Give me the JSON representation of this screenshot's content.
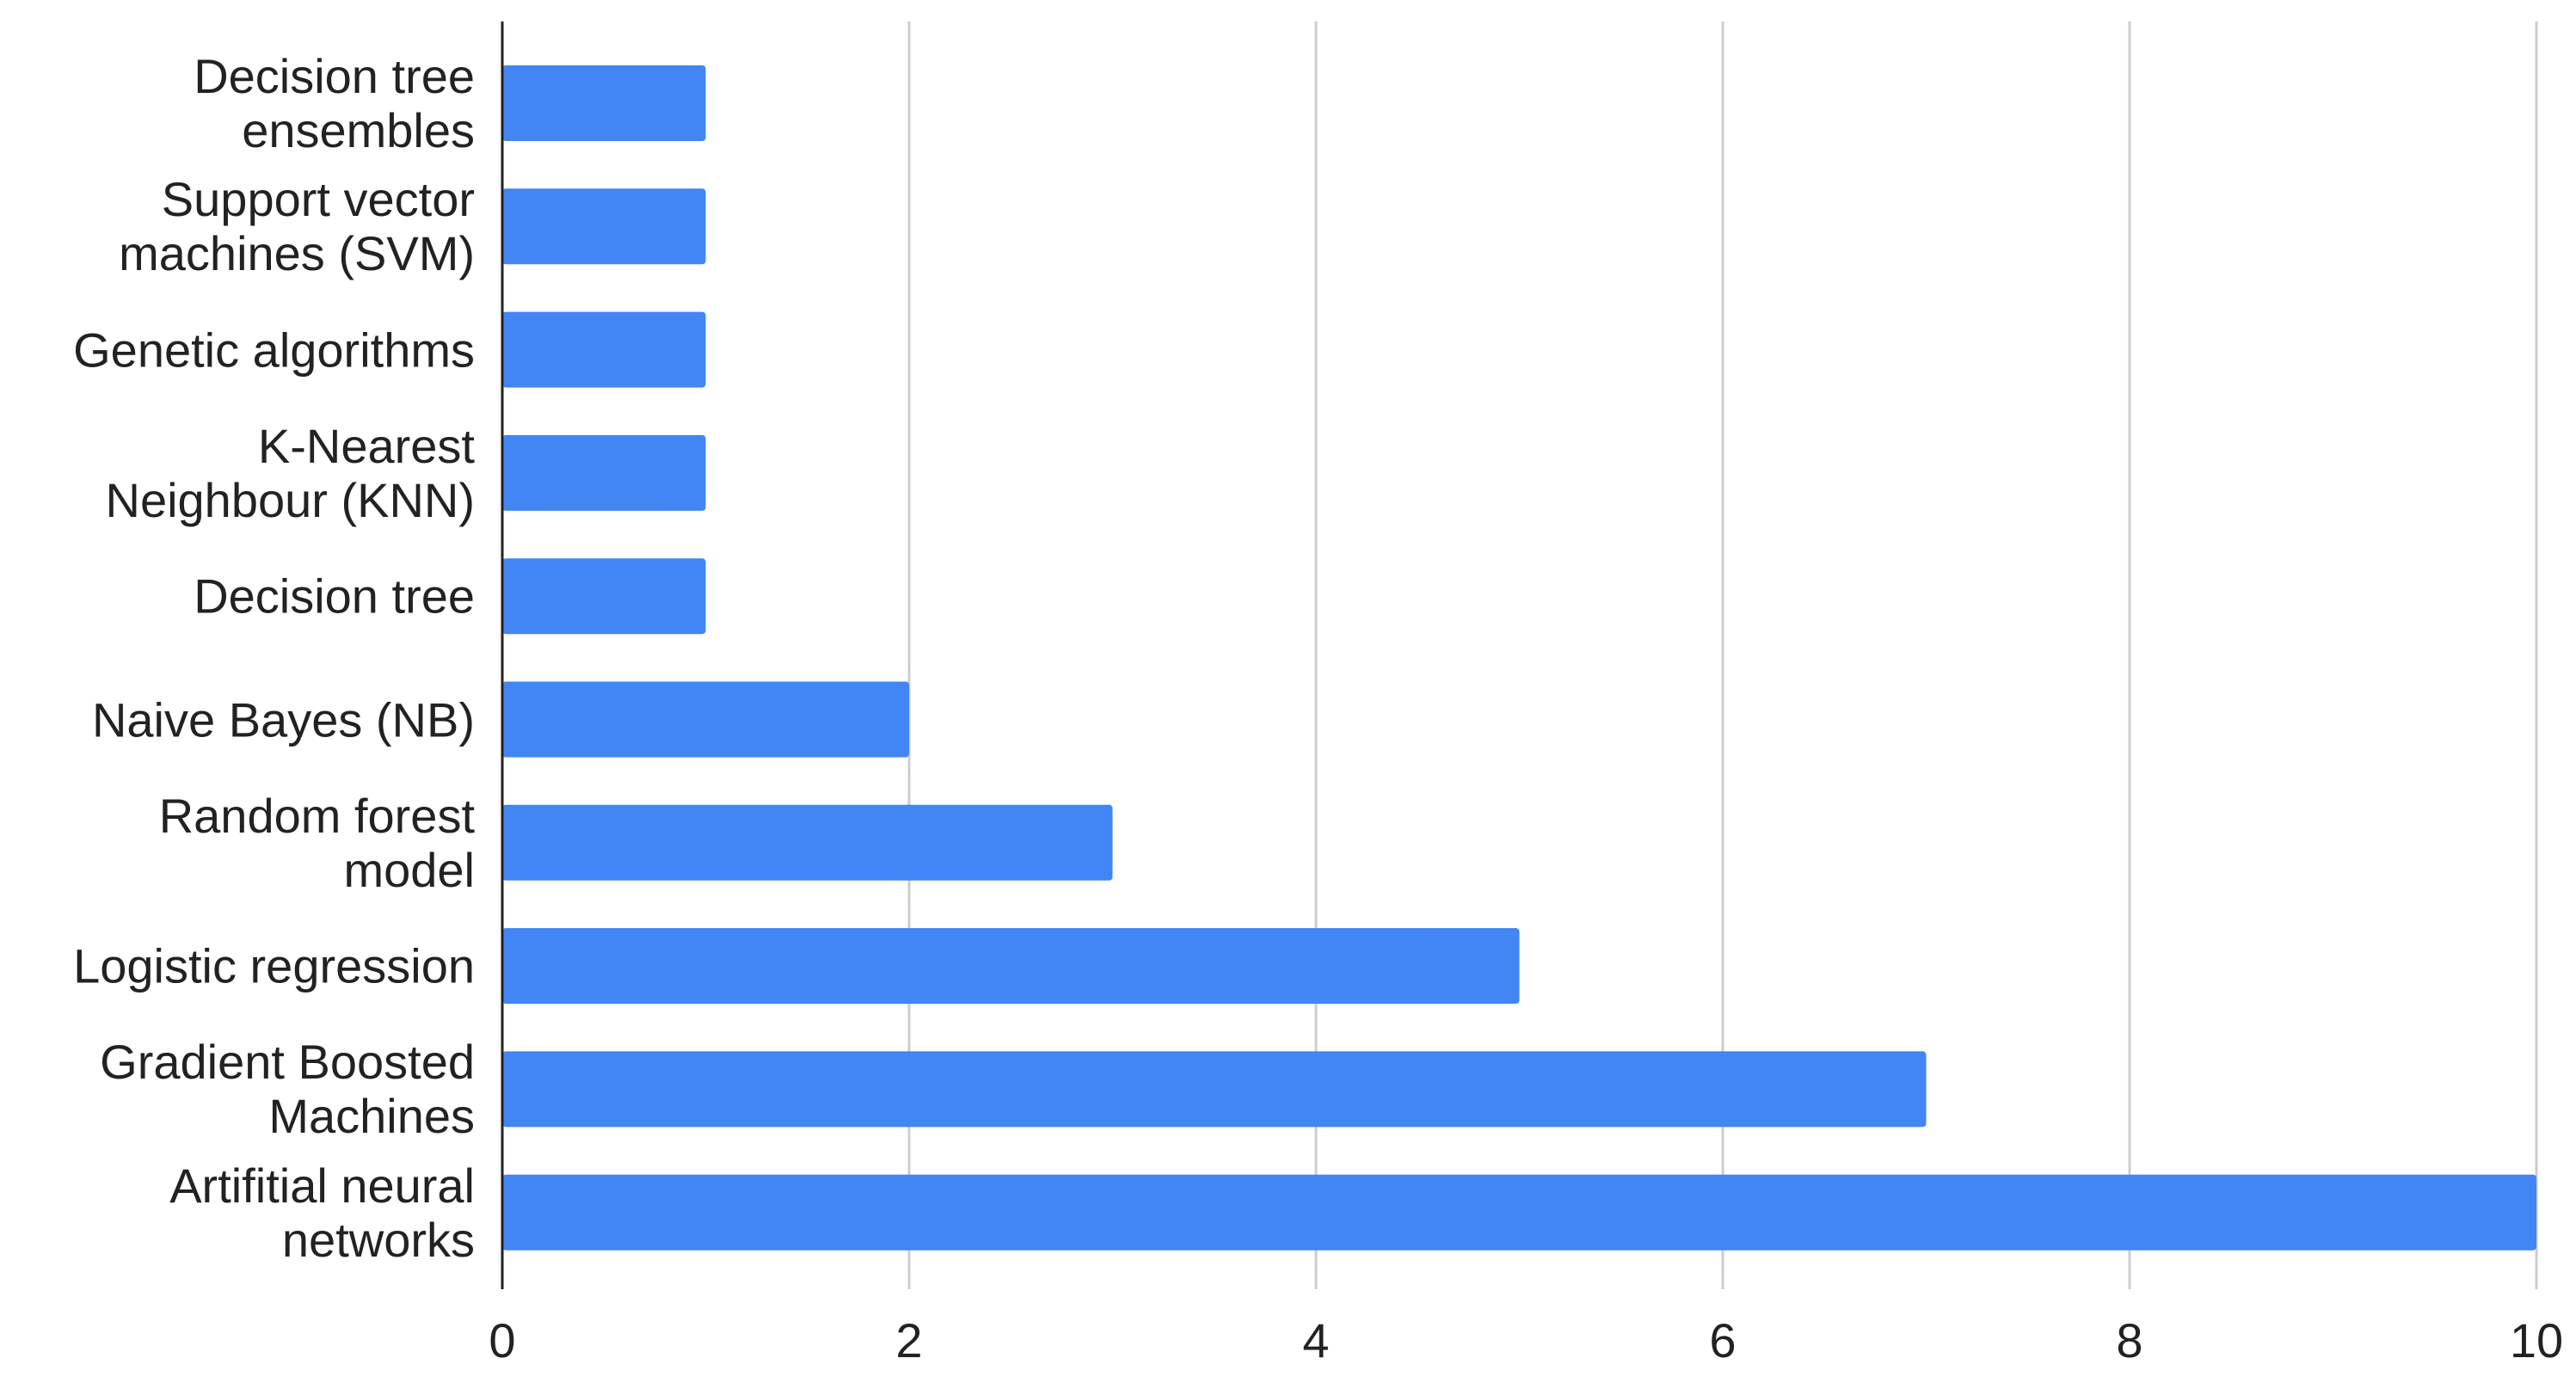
{
  "chart_data": {
    "type": "bar",
    "orientation": "horizontal",
    "categories": [
      "Decision tree\nensembles",
      "Support vector\nmachines (SVM)",
      "Genetic algorithms",
      "K-Nearest\nNeighbour (KNN)",
      "Decision tree",
      "Naive Bayes (NB)",
      "Random forest\nmodel",
      "Logistic regression",
      "Gradient Boosted\nMachines",
      "Artifitial neural\nnetworks"
    ],
    "values": [
      1,
      1,
      1,
      1,
      1,
      2,
      3,
      5,
      7,
      10
    ],
    "color": "#4285f4",
    "xlim": [
      0,
      10
    ],
    "xticks": [
      0,
      2,
      4,
      6,
      8,
      10
    ],
    "grid": true
  }
}
